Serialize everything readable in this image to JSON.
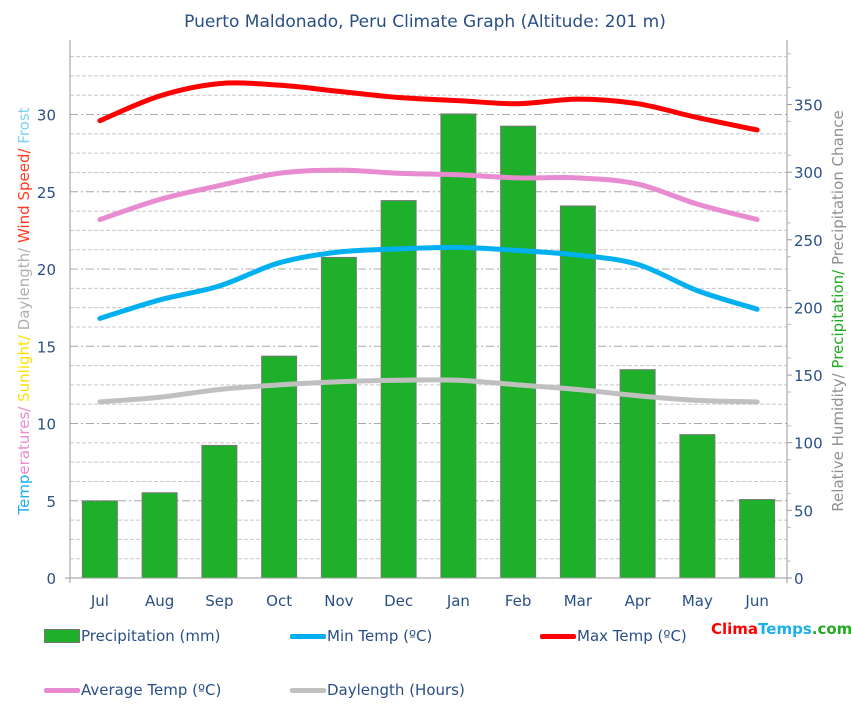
{
  "chart_data": {
    "type": "bar+line",
    "title": "Puerto Maldonado, Peru Climate Graph (Altitude: 201 m)",
    "categories": [
      "Jul",
      "Aug",
      "Sep",
      "Oct",
      "Nov",
      "Dec",
      "Jan",
      "Feb",
      "Mar",
      "Apr",
      "May",
      "Jun"
    ],
    "left_axis": {
      "label_parts": [
        {
          "text": "Temp",
          "color": "#1ab0ea"
        },
        {
          "text": "eratures/ ",
          "color": "#e88bd0"
        },
        {
          "text": "Sunlight/ ",
          "color": "#ffe000"
        },
        {
          "text": "Daylength/ ",
          "color": "#b0b0b0"
        },
        {
          "text": "Wind Speed/ ",
          "color": "#ff3b1f"
        },
        {
          "text": "Frost",
          "color": "#7fd0f0"
        }
      ],
      "ylim": [
        0,
        34.5
      ],
      "ticks": [
        0,
        5,
        10,
        15,
        20,
        25,
        30
      ]
    },
    "right_axis": {
      "label_parts": [
        {
          "text": "Relative Humidity/ ",
          "color": "#909090"
        },
        {
          "text": "Precipitation/ ",
          "color": "#22aa22"
        },
        {
          "text": "Precipitation Chance",
          "color": "#909090"
        }
      ],
      "ylim": [
        0,
        394
      ],
      "ticks": [
        0,
        50,
        100,
        150,
        200,
        250,
        300,
        350
      ]
    },
    "grid": true,
    "series": [
      {
        "name": "Precipitation (mm)",
        "type": "bar",
        "axis": "right",
        "color": "#1eb02a",
        "values": [
          57,
          63,
          98,
          164,
          237,
          279,
          343,
          334,
          275,
          154,
          106,
          58
        ]
      },
      {
        "name": "Min Temp (ºC)",
        "type": "line",
        "axis": "left",
        "color": "#00b0f0",
        "values": [
          16.8,
          18.0,
          18.9,
          20.4,
          21.1,
          21.3,
          21.4,
          21.2,
          20.9,
          20.3,
          18.6,
          17.4
        ]
      },
      {
        "name": "Max Temp (ºC)",
        "type": "line",
        "axis": "left",
        "color": "#ff0000",
        "values": [
          29.6,
          31.2,
          32.0,
          31.9,
          31.5,
          31.1,
          30.9,
          30.7,
          31.0,
          30.7,
          29.8,
          29.0
        ]
      },
      {
        "name": "Average Temp (ºC)",
        "type": "line",
        "axis": "left",
        "color": "#e88bd0",
        "values": [
          23.2,
          24.5,
          25.4,
          26.2,
          26.4,
          26.2,
          26.1,
          25.9,
          25.9,
          25.5,
          24.2,
          23.2
        ]
      },
      {
        "name": "Daylength (Hours)",
        "type": "line",
        "axis": "left",
        "color": "#c0c0c0",
        "values": [
          11.4,
          11.7,
          12.2,
          12.5,
          12.7,
          12.8,
          12.8,
          12.5,
          12.2,
          11.8,
          11.5,
          11.4
        ]
      }
    ],
    "legend_position": "bottom"
  },
  "logo": {
    "part1": "Clima",
    "part2": "Temps",
    ".com": ".com",
    "colors": [
      "#ff0000",
      "#1ab0ea",
      "#22aa22"
    ]
  }
}
